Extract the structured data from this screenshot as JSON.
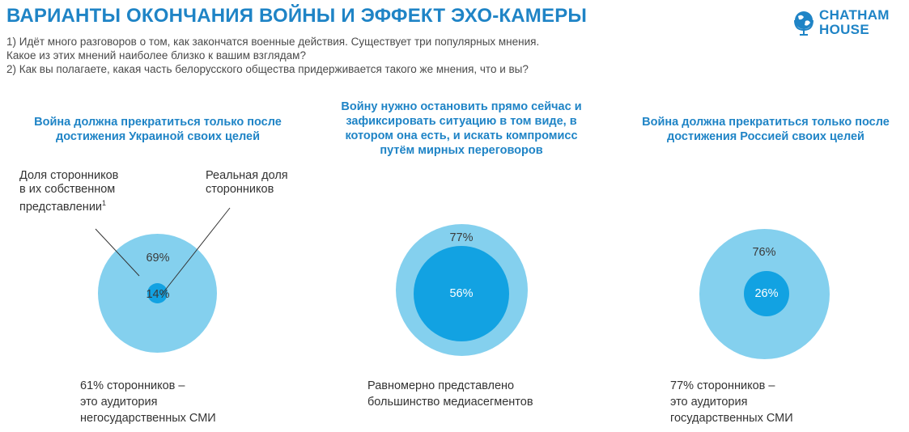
{
  "title": "ВАРИАНТЫ ОКОНЧАНИЯ ВОЙНЫ И ЭФФЕКТ ЭХО-КАМЕРЫ",
  "questions": {
    "q1_line1": "1) Идёт много разговоров о том, как закончатся военные действия. Существует три популярных мнения.",
    "q1_line2": "Какое из этих мнений наиболее близко к вашим взглядам?",
    "q2": "2) Как вы полагаете, какая часть белорусского общества придерживается такого же мнения, что и вы?"
  },
  "logo": {
    "line1": "CHATHAM",
    "line2": "HOUSE",
    "icon": "globe-icon"
  },
  "colors": {
    "accent": "#1f84c6",
    "outer_circle": "#84d0ee",
    "inner_circle": "#12a2e2"
  },
  "annotations": {
    "perceived_line1": "Доля сторонников",
    "perceived_line2": "в их собственном",
    "perceived_line3": "представлении",
    "perceived_sup": "1",
    "actual_line1": "Реальная доля",
    "actual_line2": "сторонников"
  },
  "columns": [
    {
      "title_lines": [
        "Война должна прекратиться только после",
        "достижения Украиной своих целей"
      ],
      "outer_pct": "69%",
      "inner_pct": "14%",
      "outer_value": 69,
      "inner_value": 14,
      "footer_lines": [
        "61% сторонников –",
        "это аудитория",
        "негосударственных СМИ"
      ]
    },
    {
      "title_lines": [
        "Войну нужно остановить прямо сейчас и",
        "зафиксировать ситуацию в том виде, в",
        "котором она есть, и искать компромисс",
        "путём мирных переговоров"
      ],
      "outer_pct": "77%",
      "inner_pct": "56%",
      "outer_value": 77,
      "inner_value": 56,
      "footer_lines": [
        "Равномерно представлено",
        "большинство медиасегментов"
      ]
    },
    {
      "title_lines": [
        "Война должна прекратиться только после",
        "достижения Россией своих целей"
      ],
      "outer_pct": "76%",
      "inner_pct": "26%",
      "outer_value": 76,
      "inner_value": 26,
      "footer_lines": [
        "77% сторонников –",
        "это аудитория",
        "государственных СМИ"
      ]
    }
  ]
}
